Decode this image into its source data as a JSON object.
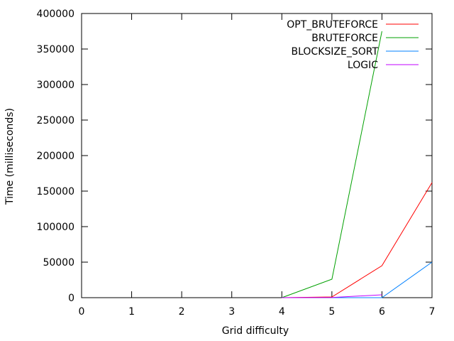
{
  "chart_data": {
    "type": "line",
    "title": "",
    "xlabel": "Grid difficulty",
    "ylabel": "Time (milliseconds)",
    "xlim": [
      0,
      7
    ],
    "ylim": [
      0,
      400000
    ],
    "x_ticks": [
      0,
      1,
      2,
      3,
      4,
      5,
      6,
      7
    ],
    "y_ticks": [
      0,
      50000,
      100000,
      150000,
      200000,
      250000,
      300000,
      350000,
      400000
    ],
    "grid": false,
    "legend_position": "top-right",
    "series": [
      {
        "name": "OPT_BRUTEFORCE",
        "color": "#ff0000",
        "points": [
          [
            4,
            0
          ],
          [
            5,
            1000
          ],
          [
            6,
            45000
          ],
          [
            7,
            162000
          ]
        ]
      },
      {
        "name": "BRUTEFORCE",
        "color": "#00a000",
        "points": [
          [
            4,
            0
          ],
          [
            5,
            26000
          ],
          [
            6,
            375000
          ]
        ]
      },
      {
        "name": "BLOCKSIZE_SORT",
        "color": "#0080ff",
        "points": [
          [
            4,
            0
          ],
          [
            5,
            0
          ],
          [
            6,
            0
          ],
          [
            7,
            50000
          ]
        ]
      },
      {
        "name": "LOGIC",
        "color": "#c000ff",
        "points": [
          [
            4,
            0
          ],
          [
            5,
            300
          ],
          [
            6,
            4000
          ]
        ]
      }
    ]
  }
}
